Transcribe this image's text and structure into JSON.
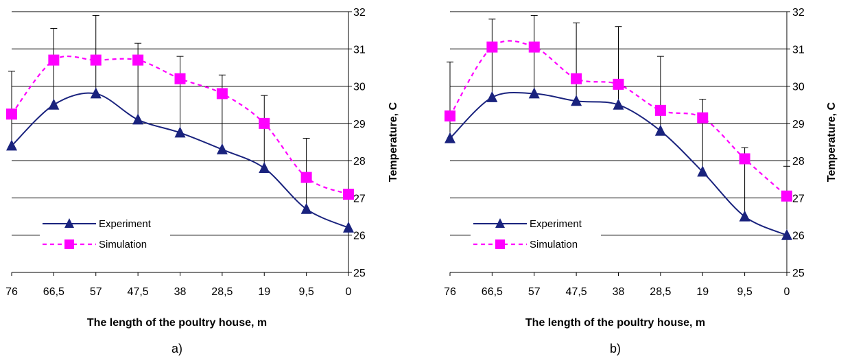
{
  "chart_data": [
    {
      "type": "line",
      "panel_label": "a)",
      "xlabel": "The length of the poultry house, m",
      "ylabel": "Temperature, C",
      "categories": [
        "76",
        "66,5",
        "57",
        "47,5",
        "38",
        "28,5",
        "19",
        "9,5",
        "0"
      ],
      "ylim": [
        25,
        32
      ],
      "yticks": [
        "25",
        "26",
        "27",
        "28",
        "29",
        "30",
        "31",
        "32"
      ],
      "y_axis_side": "right",
      "grid": "horizontal",
      "legend_position": "bottom-left",
      "series": [
        {
          "name": "Experiment",
          "marker": "triangle",
          "color": "#1a237e",
          "line_style": "solid",
          "values": [
            28.4,
            29.5,
            29.8,
            29.1,
            28.75,
            28.3,
            27.8,
            26.7,
            26.2
          ],
          "error_plus": [
            null,
            2.05,
            2.1,
            2.05,
            2.05,
            2.0,
            1.95,
            1.9,
            null
          ],
          "error_bar_left_extra": 30.4
        },
        {
          "name": "Simulation",
          "marker": "square",
          "color": "#ff00ff",
          "line_style": "dashed",
          "values": [
            29.25,
            30.7,
            30.7,
            30.7,
            30.2,
            29.8,
            29.0,
            27.55,
            27.1
          ]
        }
      ]
    },
    {
      "type": "line",
      "panel_label": "b)",
      "xlabel": "The length of the poultry house, m",
      "ylabel": "Temperature, C",
      "categories": [
        "76",
        "66,5",
        "57",
        "47,5",
        "38",
        "28,5",
        "19",
        "9,5",
        "0"
      ],
      "ylim": [
        25,
        32
      ],
      "yticks": [
        "25",
        "26",
        "27",
        "28",
        "29",
        "30",
        "31",
        "32"
      ],
      "y_axis_side": "right",
      "grid": "horizontal",
      "legend_position": "bottom-left",
      "series": [
        {
          "name": "Experiment",
          "marker": "triangle",
          "color": "#1a237e",
          "line_style": "solid",
          "values": [
            28.6,
            29.7,
            29.8,
            29.6,
            29.5,
            28.8,
            27.7,
            26.5,
            26.0
          ],
          "error_plus": [
            null,
            2.1,
            2.1,
            2.1,
            2.1,
            2.0,
            1.95,
            1.85,
            null
          ],
          "error_bar_left_extra": 30.65,
          "error_bar_right_extra": 27.85
        },
        {
          "name": "Simulation",
          "marker": "square",
          "color": "#ff00ff",
          "line_style": "dashed",
          "values": [
            29.2,
            31.05,
            31.05,
            30.2,
            30.05,
            29.35,
            29.15,
            28.05,
            27.05
          ]
        }
      ]
    }
  ]
}
